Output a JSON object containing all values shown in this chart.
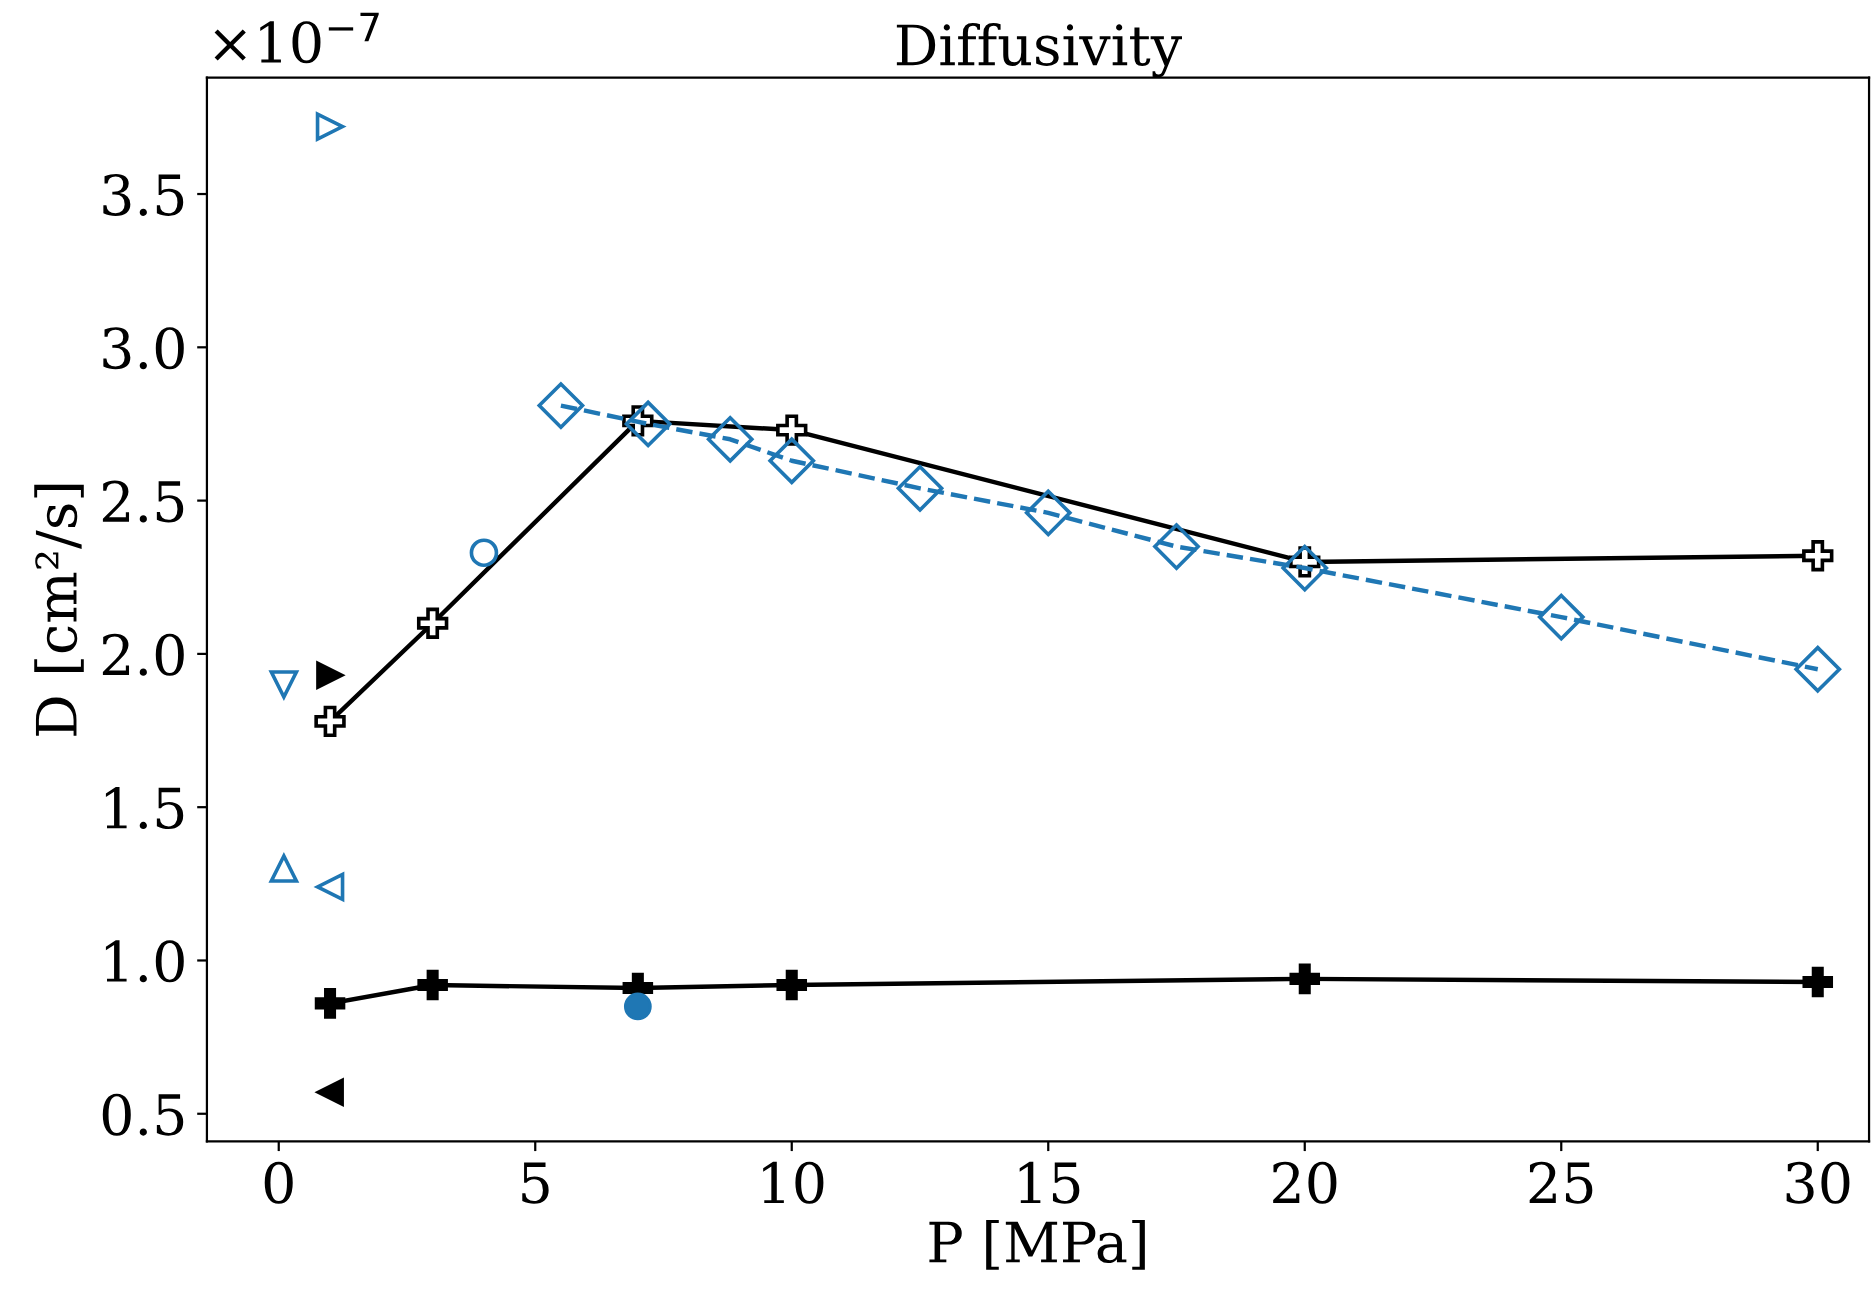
{
  "chart_data": {
    "type": "line",
    "title": "Diffusivity",
    "xlabel": "P [MPa]",
    "ylabel": "D [cm²/s]",
    "annotations": [
      "×10$^{−7}$"
    ],
    "xlim": [
      -1.4,
      31.0
    ],
    "xticks": [
      0,
      5,
      10,
      15,
      20,
      25,
      30
    ],
    "ylim": [
      0.41,
      3.88
    ],
    "yticks": [
      0.5,
      {
        "value": 1.0,
        "label": "1.0"
      },
      1.5,
      {
        "value": 2.0,
        "label": "2.0"
      },
      2.5,
      {
        "value": 3.0,
        "label": "3.0"
      },
      3.5
    ],
    "series": [
      {
        "color": "#000000",
        "marker": "cross",
        "line_style": "solid",
        "x": [
          1,
          3,
          7,
          10,
          20,
          30
        ],
        "values": [
          1.78,
          2.1,
          2.76,
          2.73,
          2.3,
          2.32
        ]
      },
      {
        "color": "#000000",
        "marker": "cross",
        "line_style": "solid",
        "x": [
          1,
          3,
          7,
          10,
          20,
          30
        ],
        "values": [
          0.86,
          0.92,
          0.91,
          0.92,
          0.94,
          0.93
        ]
      },
      {
        "color": "#1f77b4",
        "marker": "diamond",
        "line_style": "dashed",
        "x": [
          5.5,
          7.2,
          8.8,
          10,
          12.5,
          15,
          17.5,
          20,
          25,
          30
        ],
        "values": [
          2.81,
          2.75,
          2.7,
          2.63,
          2.54,
          2.46,
          2.35,
          2.28,
          2.12,
          1.95
        ]
      },
      {
        "type": "scatter",
        "color": "#1f77b4",
        "marker": "triangle",
        "x": [
          1
        ],
        "values": [
          3.72
        ]
      },
      {
        "type": "scatter",
        "color": "#1f77b4",
        "marker": "circle",
        "x": [
          4
        ],
        "values": [
          2.33
        ]
      },
      {
        "type": "scatter",
        "color": "#1f77b4",
        "marker": "triangle",
        "x": [
          0.1
        ],
        "values": [
          1.9
        ]
      },
      {
        "type": "scatter",
        "color": "#000000",
        "marker": "triangle",
        "x": [
          1
        ],
        "values": [
          1.93
        ]
      },
      {
        "type": "scatter",
        "color": "#1f77b4",
        "marker": "triangle",
        "x": [
          0.1
        ],
        "values": [
          1.3
        ]
      },
      {
        "type": "scatter",
        "color": "#1f77b4",
        "marker": "triangle",
        "x": [
          1
        ],
        "values": [
          1.24
        ]
      },
      {
        "type": "scatter",
        "color": "#1f77b4",
        "marker": "circle",
        "x": [
          7
        ],
        "values": [
          0.85
        ]
      },
      {
        "type": "scatter",
        "color": "#000000",
        "marker": "triangle",
        "x": [
          1
        ],
        "values": [
          0.57
        ]
      }
    ]
  }
}
